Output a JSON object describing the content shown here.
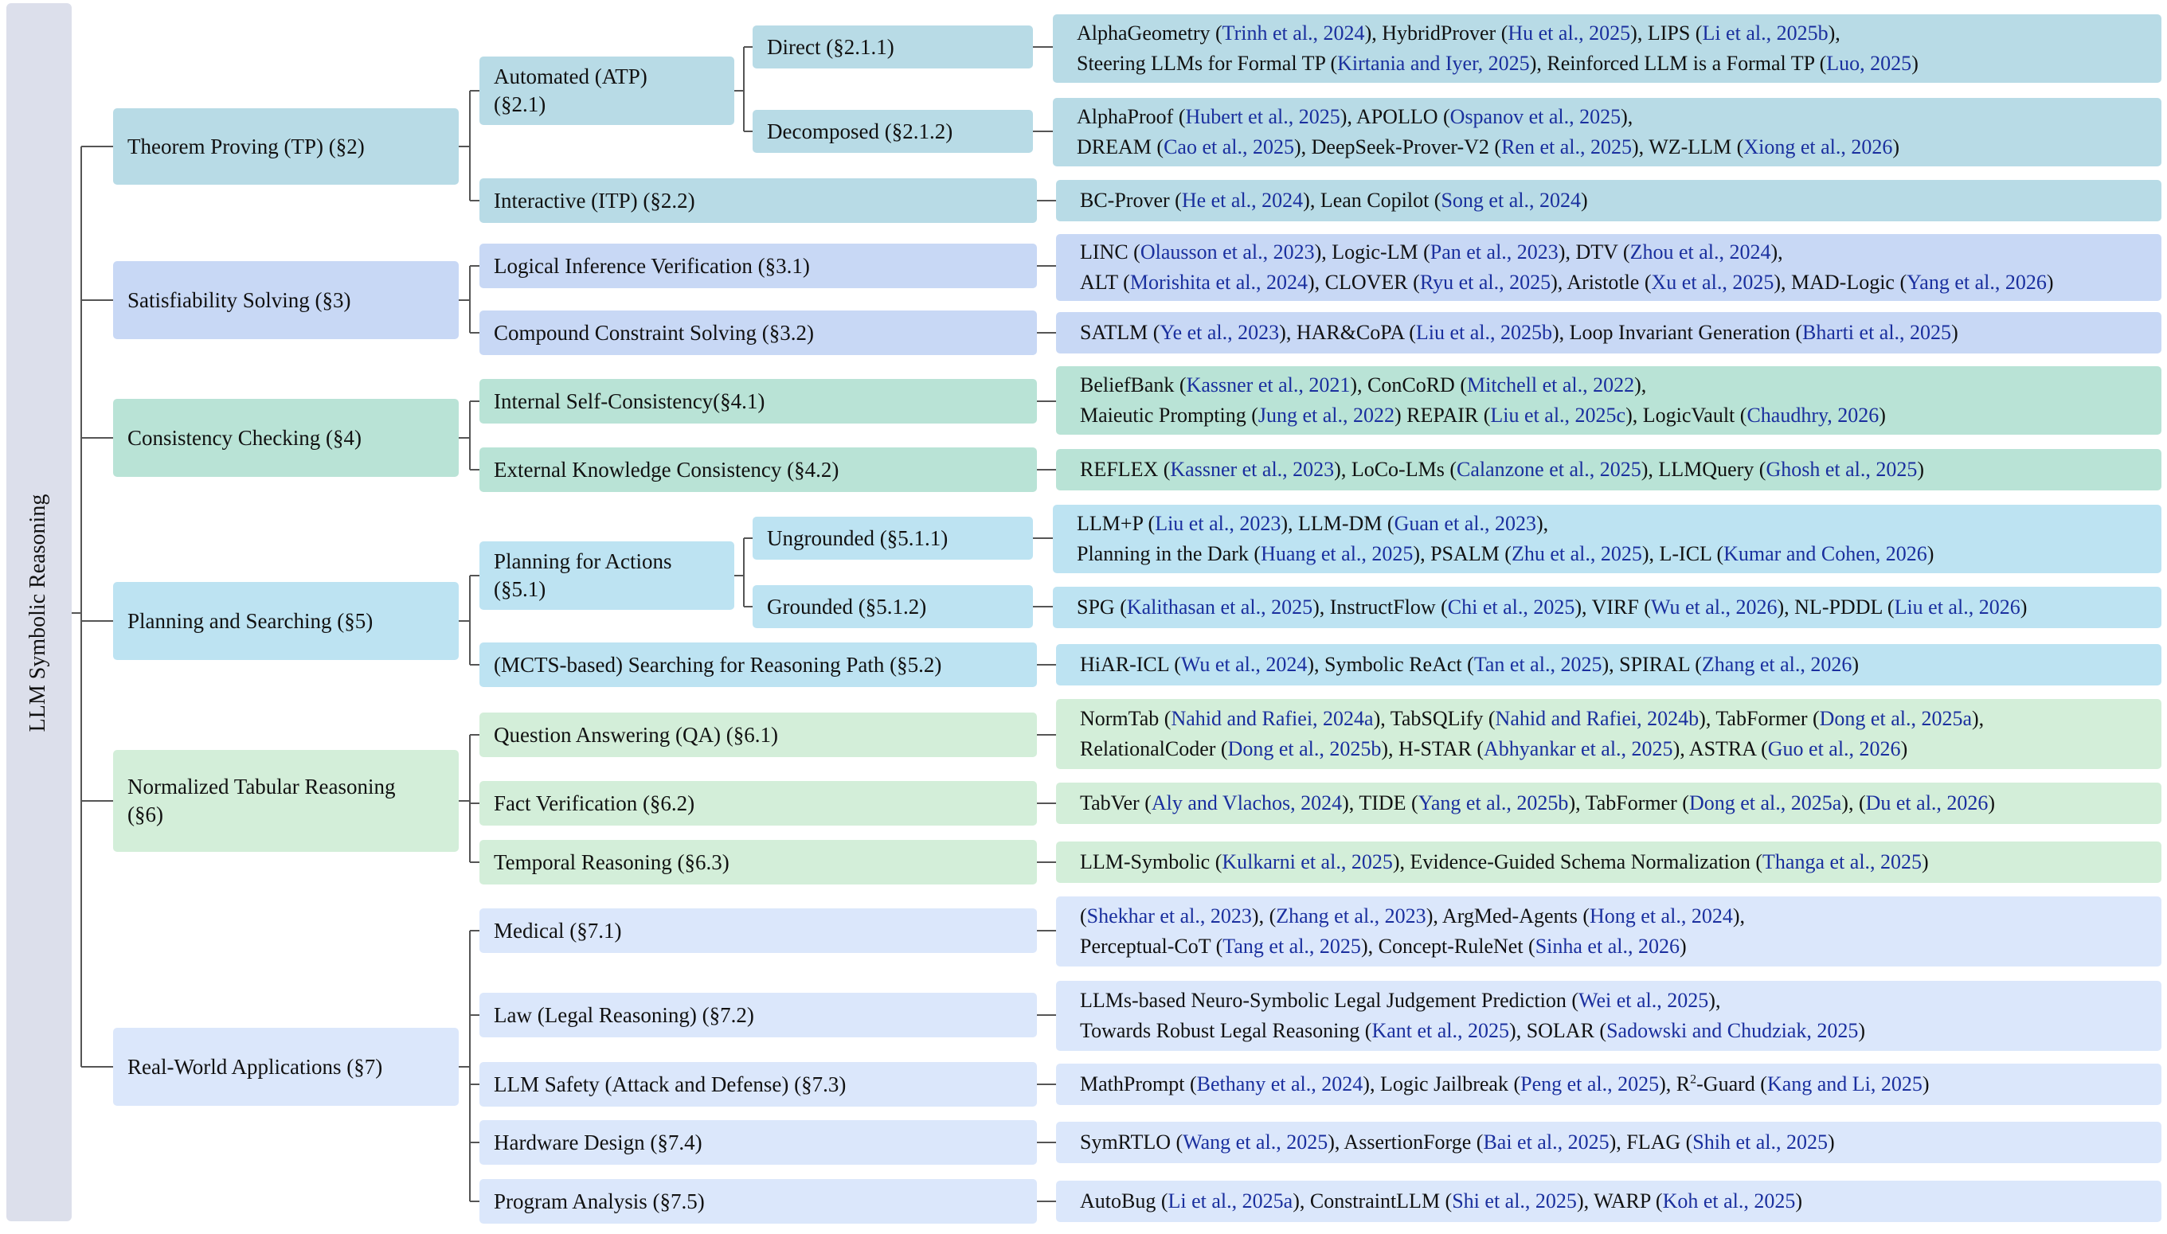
{
  "root": "LLM Symbolic Reasoning",
  "colors": {
    "theorem": "#b8dbe6",
    "satisfiability": "#c8d8f5",
    "consistency": "#b9e3d6",
    "planning": "#bde3f2",
    "tabular": "#d3eed9",
    "applications": "#dbe7fb",
    "citation": "#1a2f9e",
    "line": "#555555"
  },
  "l1": {
    "tp": "Theorem Proving (TP) (§2)",
    "ss": "Satisfiability Solving (§3)",
    "cc": "Consistency Checking (§4)",
    "ps": "Planning and Searching (§5)",
    "nt1": "Normalized Tabular Reasoning",
    "nt2": "(§6)",
    "rw": "Real-World Applications (§7)"
  },
  "l2": {
    "atp1": "Automated (ATP)",
    "atp2": "(§2.1)",
    "itp": "Interactive (ITP) (§2.2)",
    "liv": "Logical Inference Verification (§3.1)",
    "ccs": "Compound Constraint Solving (§3.2)",
    "isc": "Internal Self-Consistency(§4.1)",
    "ekc": "External Knowledge Consistency (§4.2)",
    "pfa1": "Planning for Actions",
    "pfa2": "(§5.1)",
    "mcts": "(MCTS-based) Searching for Reasoning Path (§5.2)",
    "qa": "Question Answering (QA) (§6.1)",
    "fv": "Fact Verification (§6.2)",
    "tr": "Temporal Reasoning (§6.3)",
    "med": "Medical (§7.1)",
    "law": "Law (Legal Reasoning) (§7.2)",
    "safe": "LLM Safety (Attack and Defense) (§7.3)",
    "hw": "Hardware Design (§7.4)",
    "pa": "Program Analysis (§7.5)"
  },
  "l3": {
    "direct": "Direct (§2.1.1)",
    "decomp": "Decomposed (§2.1.2)",
    "ungr": "Ungrounded (§5.1.1)",
    "gr": "Grounded (§5.1.2)"
  },
  "leaves": {
    "direct": [
      [
        [
          "t",
          "AlphaGeometry ("
        ],
        [
          "r",
          "Trinh et al., 2024"
        ],
        [
          "t",
          "), HybridProver ("
        ],
        [
          "r",
          "Hu et al., 2025"
        ],
        [
          "t",
          "), LIPS ("
        ],
        [
          "r",
          "Li et al., 2025b"
        ],
        [
          "t",
          "),"
        ]
      ],
      [
        [
          "t",
          "Steering LLMs for Formal TP ("
        ],
        [
          "r",
          "Kirtania and Iyer, 2025"
        ],
        [
          "t",
          "), Reinforced LLM is a Formal TP ("
        ],
        [
          "r",
          "Luo, 2025"
        ],
        [
          "t",
          ")"
        ]
      ]
    ],
    "decomp": [
      [
        [
          "t",
          "AlphaProof ("
        ],
        [
          "r",
          "Hubert et al., 2025"
        ],
        [
          "t",
          "), APOLLO ("
        ],
        [
          "r",
          "Ospanov et al., 2025"
        ],
        [
          "t",
          "),"
        ]
      ],
      [
        [
          "t",
          "DREAM ("
        ],
        [
          "r",
          "Cao et al., 2025"
        ],
        [
          "t",
          "), DeepSeek-Prover-V2 ("
        ],
        [
          "r",
          "Ren et al., 2025"
        ],
        [
          "t",
          "), WZ-LLM ("
        ],
        [
          "r",
          "Xiong et al., 2026"
        ],
        [
          "t",
          ")"
        ]
      ]
    ],
    "itp": [
      [
        [
          "t",
          "BC-Prover ("
        ],
        [
          "r",
          "He et al., 2024"
        ],
        [
          "t",
          "), Lean Copilot ("
        ],
        [
          "r",
          "Song et al., 2024"
        ],
        [
          "t",
          ")"
        ]
      ]
    ],
    "liv": [
      [
        [
          "t",
          "LINC ("
        ],
        [
          "r",
          "Olausson et al., 2023"
        ],
        [
          "t",
          "), Logic-LM ("
        ],
        [
          "r",
          "Pan et al., 2023"
        ],
        [
          "t",
          "), DTV ("
        ],
        [
          "r",
          "Zhou et al., 2024"
        ],
        [
          "t",
          "),"
        ]
      ],
      [
        [
          "t",
          "ALT ("
        ],
        [
          "r",
          "Morishita et al., 2024"
        ],
        [
          "t",
          "), CLOVER ("
        ],
        [
          "r",
          "Ryu et al., 2025"
        ],
        [
          "t",
          "), Aristotle ("
        ],
        [
          "r",
          "Xu et al., 2025"
        ],
        [
          "t",
          "), MAD-Logic ("
        ],
        [
          "r",
          "Yang et al., 2026"
        ],
        [
          "t",
          ")"
        ]
      ]
    ],
    "ccs": [
      [
        [
          "t",
          "SATLM ("
        ],
        [
          "r",
          "Ye et al., 2023"
        ],
        [
          "t",
          "), HAR&CoPA ("
        ],
        [
          "r",
          "Liu et al., 2025b"
        ],
        [
          "t",
          "), Loop Invariant Generation ("
        ],
        [
          "r",
          "Bharti et al., 2025"
        ],
        [
          "t",
          ")"
        ]
      ]
    ],
    "isc": [
      [
        [
          "t",
          "BeliefBank ("
        ],
        [
          "r",
          "Kassner et al., 2021"
        ],
        [
          "t",
          "), ConCoRD ("
        ],
        [
          "r",
          "Mitchell et al., 2022"
        ],
        [
          "t",
          "),"
        ]
      ],
      [
        [
          "t",
          "Maieutic Prompting ("
        ],
        [
          "r",
          "Jung et al., 2022"
        ],
        [
          "t",
          ") REPAIR ("
        ],
        [
          "r",
          "Liu et al., 2025c"
        ],
        [
          "t",
          "), LogicVault ("
        ],
        [
          "r",
          "Chaudhry, 2026"
        ],
        [
          "t",
          ")"
        ]
      ]
    ],
    "ekc": [
      [
        [
          "t",
          "REFLEX ("
        ],
        [
          "r",
          "Kassner et al., 2023"
        ],
        [
          "t",
          "), LoCo-LMs ("
        ],
        [
          "r",
          "Calanzone et al., 2025"
        ],
        [
          "t",
          "), LLMQuery ("
        ],
        [
          "r",
          "Ghosh et al., 2025"
        ],
        [
          "t",
          ")"
        ]
      ]
    ],
    "ungr": [
      [
        [
          "t",
          "LLM+P ("
        ],
        [
          "r",
          "Liu et al., 2023"
        ],
        [
          "t",
          "), LLM-DM ("
        ],
        [
          "r",
          "Guan et al., 2023"
        ],
        [
          "t",
          "),"
        ]
      ],
      [
        [
          "t",
          "Planning in the Dark ("
        ],
        [
          "r",
          "Huang et al., 2025"
        ],
        [
          "t",
          "), PSALM ("
        ],
        [
          "r",
          "Zhu et al., 2025"
        ],
        [
          "t",
          "), L-ICL ("
        ],
        [
          "r",
          "Kumar and Cohen, 2026"
        ],
        [
          "t",
          ")"
        ]
      ]
    ],
    "gr": [
      [
        [
          "t",
          "SPG ("
        ],
        [
          "r",
          "Kalithasan et al., 2025"
        ],
        [
          "t",
          "), InstructFlow ("
        ],
        [
          "r",
          "Chi et al., 2025"
        ],
        [
          "t",
          "), VIRF ("
        ],
        [
          "r",
          "Wu et al., 2026"
        ],
        [
          "t",
          "), NL-PDDL ("
        ],
        [
          "r",
          "Liu et al., 2026"
        ],
        [
          "t",
          ")"
        ]
      ]
    ],
    "mcts": [
      [
        [
          "t",
          "HiAR-ICL ("
        ],
        [
          "r",
          "Wu et al., 2024"
        ],
        [
          "t",
          "), Symbolic ReAct ("
        ],
        [
          "r",
          "Tan et al., 2025"
        ],
        [
          "t",
          "), SPIRAL ("
        ],
        [
          "r",
          "Zhang et al., 2026"
        ],
        [
          "t",
          ")"
        ]
      ]
    ],
    "qa": [
      [
        [
          "t",
          "NormTab ("
        ],
        [
          "r",
          "Nahid and Rafiei, 2024a"
        ],
        [
          "t",
          "), TabSQLify ("
        ],
        [
          "r",
          "Nahid and Rafiei, 2024b"
        ],
        [
          "t",
          "), TabFormer ("
        ],
        [
          "r",
          "Dong et al., 2025a"
        ],
        [
          "t",
          "),"
        ]
      ],
      [
        [
          "t",
          "RelationalCoder ("
        ],
        [
          "r",
          "Dong et al., 2025b"
        ],
        [
          "t",
          "), H-STAR ("
        ],
        [
          "r",
          "Abhyankar et al., 2025"
        ],
        [
          "t",
          "), ASTRA ("
        ],
        [
          "r",
          "Guo et al., 2026"
        ],
        [
          "t",
          ")"
        ]
      ]
    ],
    "fv": [
      [
        [
          "t",
          "TabVer ("
        ],
        [
          "r",
          "Aly and Vlachos, 2024"
        ],
        [
          "t",
          "), TIDE ("
        ],
        [
          "r",
          "Yang et al., 2025b"
        ],
        [
          "t",
          "), TabFormer ("
        ],
        [
          "r",
          "Dong et al., 2025a"
        ],
        [
          "t",
          "), ("
        ],
        [
          "r",
          "Du et al., 2026"
        ],
        [
          "t",
          ")"
        ]
      ]
    ],
    "tr": [
      [
        [
          "t",
          "LLM-Symbolic ("
        ],
        [
          "r",
          "Kulkarni et al., 2025"
        ],
        [
          "t",
          "), Evidence-Guided Schema Normalization ("
        ],
        [
          "r",
          "Thanga et al., 2025"
        ],
        [
          "t",
          ")"
        ]
      ]
    ],
    "med": [
      [
        [
          "t",
          "("
        ],
        [
          "r",
          "Shekhar et al., 2023"
        ],
        [
          "t",
          "), ("
        ],
        [
          "r",
          "Zhang et al., 2023"
        ],
        [
          "t",
          "), ArgMed-Agents ("
        ],
        [
          "r",
          "Hong et al., 2024"
        ],
        [
          "t",
          "),"
        ]
      ],
      [
        [
          "t",
          "Perceptual-CoT ("
        ],
        [
          "r",
          "Tang et al., 2025"
        ],
        [
          "t",
          "), Concept-RuleNet ("
        ],
        [
          "r",
          "Sinha et al., 2026"
        ],
        [
          "t",
          ")"
        ]
      ]
    ],
    "law": [
      [
        [
          "t",
          "LLMs-based Neuro-Symbolic Legal Judgement Prediction ("
        ],
        [
          "r",
          "Wei et al., 2025"
        ],
        [
          "t",
          "),"
        ]
      ],
      [
        [
          "t",
          "Towards Robust Legal Reasoning ("
        ],
        [
          "r",
          "Kant et al., 2025"
        ],
        [
          "t",
          "), SOLAR ("
        ],
        [
          "r",
          "Sadowski and Chudziak, 2025"
        ],
        [
          "t",
          ")"
        ]
      ]
    ],
    "safe": [
      [
        [
          "t",
          "MathPrompt ("
        ],
        [
          "r",
          "Bethany et al., 2024"
        ],
        [
          "t",
          "), Logic Jailbreak ("
        ],
        [
          "r",
          "Peng et al., 2025"
        ],
        [
          "t",
          "), R"
        ],
        [
          "s",
          "2"
        ],
        [
          "t",
          "-Guard ("
        ],
        [
          "r",
          "Kang and Li, 2025"
        ],
        [
          "t",
          ")"
        ]
      ]
    ],
    "hw": [
      [
        [
          "t",
          "SymRTLO ("
        ],
        [
          "r",
          "Wang et al., 2025"
        ],
        [
          "t",
          "), AssertionForge ("
        ],
        [
          "r",
          "Bai et al., 2025"
        ],
        [
          "t",
          "), FLAG ("
        ],
        [
          "r",
          "Shih et al., 2025"
        ],
        [
          "t",
          ")"
        ]
      ]
    ],
    "pa": [
      [
        [
          "t",
          "AutoBug ("
        ],
        [
          "r",
          "Li et al., 2025a"
        ],
        [
          "t",
          "), ConstraintLLM ("
        ],
        [
          "r",
          "Shi et al., 2025"
        ],
        [
          "t",
          "), WARP ("
        ],
        [
          "r",
          "Koh et al., 2025"
        ],
        [
          "t",
          ")"
        ]
      ]
    ]
  }
}
